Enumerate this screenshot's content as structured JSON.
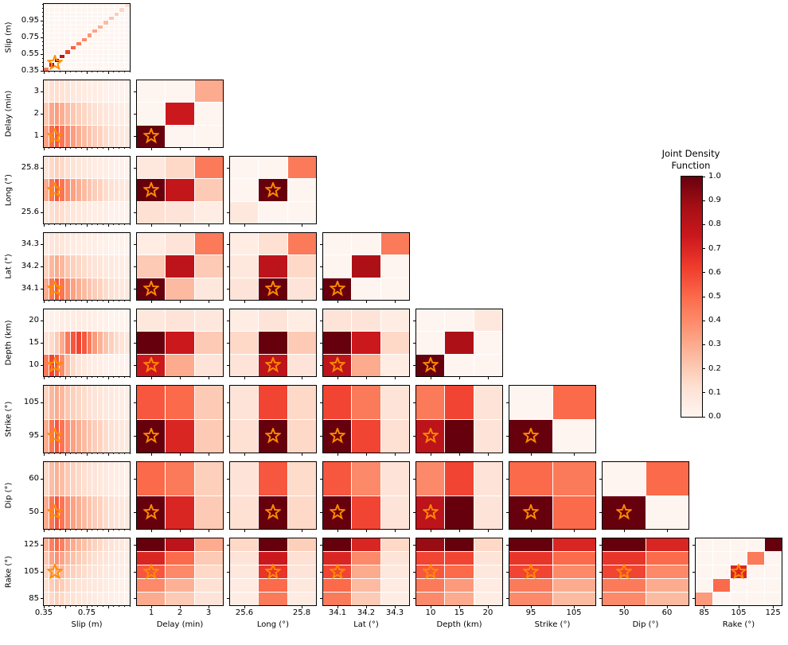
{
  "chart_data": {
    "type": "heatmap",
    "title": "Joint Density Function",
    "background": "#ffffff",
    "star_color": "#ff8c00",
    "colorbar": {
      "title_lines": [
        "Joint Density",
        "Function"
      ],
      "tick_labels": [
        "0.0",
        "0.1",
        "0.2",
        "0.3",
        "0.4",
        "0.5",
        "0.6",
        "0.7",
        "0.8",
        "0.9",
        "1.0"
      ],
      "vmin": 0.0,
      "vmax": 1.0
    },
    "colormap": {
      "name": "Reds",
      "anchors": [
        {
          "pos": 0.0,
          "rgb": [
            255,
            245,
            240
          ]
        },
        {
          "pos": 0.125,
          "rgb": [
            254,
            224,
            210
          ]
        },
        {
          "pos": 0.25,
          "rgb": [
            252,
            187,
            161
          ]
        },
        {
          "pos": 0.375,
          "rgb": [
            252,
            146,
            114
          ]
        },
        {
          "pos": 0.5,
          "rgb": [
            251,
            106,
            74
          ]
        },
        {
          "pos": 0.625,
          "rgb": [
            239,
            59,
            44
          ]
        },
        {
          "pos": 0.75,
          "rgb": [
            203,
            24,
            29
          ]
        },
        {
          "pos": 0.875,
          "rgb": [
            165,
            15,
            21
          ]
        },
        {
          "pos": 1.0,
          "rgb": [
            103,
            0,
            13
          ]
        }
      ]
    },
    "variables": [
      {
        "key": "slip",
        "label": "Slip (m)",
        "min": 0.35,
        "max": 1.15,
        "star": 0.45,
        "minor_step": 0.05,
        "ticks": [
          {
            "v": 0.35,
            "t": "0.35"
          },
          {
            "v": 0.55,
            "t": "0.55"
          },
          {
            "v": 0.75,
            "t": "0.75"
          },
          {
            "v": 0.95,
            "t": "0.95"
          }
        ],
        "xticks": [
          {
            "v": 0.35,
            "t": "0.35"
          },
          {
            "v": 0.75,
            "t": "0.75"
          }
        ]
      },
      {
        "key": "delay",
        "label": "Delay (min)",
        "min": 0.5,
        "max": 3.5,
        "star": 1,
        "ticks": [
          {
            "v": 1,
            "t": "1"
          },
          {
            "v": 2,
            "t": "2"
          },
          {
            "v": 3,
            "t": "3"
          }
        ]
      },
      {
        "key": "long",
        "label": "Long (°)",
        "min": 25.55,
        "max": 25.85,
        "star": 25.7,
        "ticks": [
          {
            "v": 25.6,
            "t": "25.6"
          },
          {
            "v": 25.8,
            "t": "25.8"
          }
        ]
      },
      {
        "key": "lat",
        "label": "Lat (°)",
        "min": 34.05,
        "max": 34.35,
        "star": 34.1,
        "ticks": [
          {
            "v": 34.1,
            "t": "34.1"
          },
          {
            "v": 34.2,
            "t": "34.2"
          },
          {
            "v": 34.3,
            "t": "34.3"
          }
        ]
      },
      {
        "key": "depth",
        "label": "Depth (km)",
        "min": 7.5,
        "max": 22.5,
        "star": 10,
        "ticks": [
          {
            "v": 10,
            "t": "10"
          },
          {
            "v": 15,
            "t": "15"
          },
          {
            "v": 20,
            "t": "20"
          }
        ]
      },
      {
        "key": "strike",
        "label": "Strike (°)",
        "min": 90,
        "max": 110,
        "star": 95,
        "ticks": [
          {
            "v": 95,
            "t": "95"
          },
          {
            "v": 105,
            "t": "105"
          }
        ]
      },
      {
        "key": "dip",
        "label": "Dip (°)",
        "min": 45,
        "max": 65,
        "star": 50,
        "ticks": [
          {
            "v": 50,
            "t": "50"
          },
          {
            "v": 60,
            "t": "60"
          }
        ]
      },
      {
        "key": "rake",
        "label": "Rake (°)",
        "min": 80,
        "max": 130,
        "star": 105,
        "ticks": [
          {
            "v": 85,
            "t": "85"
          },
          {
            "v": 105,
            "t": "105"
          },
          {
            "v": 125,
            "t": "125"
          }
        ]
      }
    ],
    "panels": [
      {
        "xi": 0,
        "yi": 0,
        "diag": [
          0.45,
          0.85,
          1.0,
          0.8,
          0.62,
          0.52,
          0.45,
          0.4,
          0.36,
          0.32,
          0.28,
          0.25,
          0.22,
          0.19,
          0.16,
          0.13
        ]
      },
      {
        "xi": 0,
        "yi": 1,
        "matrix": [
          [
            0.33,
            0.5,
            0.55,
            0.47,
            0.4,
            0.34,
            0.29,
            0.25,
            0.22,
            0.19,
            0.17,
            0.14,
            0.12,
            0.1,
            0.08,
            0.07
          ],
          [
            0.2,
            0.31,
            0.34,
            0.29,
            0.25,
            0.21,
            0.18,
            0.16,
            0.14,
            0.12,
            0.1,
            0.09,
            0.08,
            0.06,
            0.05,
            0.04
          ],
          [
            0.08,
            0.12,
            0.13,
            0.11,
            0.1,
            0.08,
            0.07,
            0.06,
            0.05,
            0.05,
            0.04,
            0.03,
            0.03,
            0.02,
            0.02,
            0.02
          ]
        ]
      },
      {
        "xi": 1,
        "yi": 1,
        "diag": [
          1.0,
          0.75,
          0.3
        ]
      },
      {
        "xi": 0,
        "yi": 2,
        "matrix": [
          [
            0.08,
            0.13,
            0.15,
            0.13,
            0.11,
            0.09,
            0.08,
            0.07,
            0.06,
            0.05,
            0.05,
            0.04,
            0.03,
            0.03,
            0.02,
            0.02
          ],
          [
            0.3,
            0.47,
            0.55,
            0.47,
            0.39,
            0.33,
            0.29,
            0.25,
            0.22,
            0.19,
            0.17,
            0.14,
            0.12,
            0.1,
            0.08,
            0.07
          ],
          [
            0.1,
            0.15,
            0.18,
            0.15,
            0.13,
            0.11,
            0.09,
            0.08,
            0.07,
            0.06,
            0.05,
            0.05,
            0.04,
            0.03,
            0.03,
            0.02
          ]
        ]
      },
      {
        "xi": 1,
        "yi": 2,
        "matrix": [
          [
            0.12,
            0.1,
            0.05
          ],
          [
            1.0,
            0.78,
            0.2
          ],
          [
            0.08,
            0.15,
            0.45
          ]
        ]
      },
      {
        "xi": 2,
        "yi": 2,
        "diag": [
          0.08,
          1.0,
          0.45
        ]
      },
      {
        "xi": 0,
        "yi": 3,
        "matrix": [
          [
            0.3,
            0.47,
            0.55,
            0.47,
            0.39,
            0.33,
            0.29,
            0.25,
            0.22,
            0.19,
            0.17,
            0.14,
            0.12,
            0.1,
            0.08,
            0.07
          ],
          [
            0.17,
            0.26,
            0.3,
            0.26,
            0.21,
            0.18,
            0.16,
            0.14,
            0.12,
            0.1,
            0.09,
            0.08,
            0.07,
            0.06,
            0.05,
            0.04
          ],
          [
            0.06,
            0.09,
            0.1,
            0.09,
            0.07,
            0.06,
            0.05,
            0.05,
            0.04,
            0.04,
            0.03,
            0.03,
            0.02,
            0.02,
            0.02,
            0.01
          ]
        ]
      },
      {
        "xi": 1,
        "yi": 3,
        "matrix": [
          [
            1.0,
            0.25,
            0.08
          ],
          [
            0.2,
            0.8,
            0.2
          ],
          [
            0.05,
            0.1,
            0.45
          ]
        ]
      },
      {
        "xi": 2,
        "yi": 3,
        "matrix": [
          [
            0.1,
            1.0,
            0.1
          ],
          [
            0.08,
            0.8,
            0.15
          ],
          [
            0.05,
            0.12,
            0.45
          ]
        ]
      },
      {
        "xi": 3,
        "yi": 3,
        "diag": [
          1.0,
          0.85,
          0.45
        ]
      },
      {
        "xi": 0,
        "yi": 4,
        "matrix": [
          [
            0.45,
            0.6,
            0.55,
            0.4,
            0.25,
            0.15,
            0.1,
            0.08,
            0.06,
            0.05,
            0.04,
            0.03,
            0.03,
            0.02,
            0.02,
            0.01
          ],
          [
            0.1,
            0.14,
            0.2,
            0.3,
            0.45,
            0.55,
            0.6,
            0.55,
            0.45,
            0.35,
            0.28,
            0.22,
            0.18,
            0.14,
            0.11,
            0.08
          ],
          [
            0.02,
            0.03,
            0.03,
            0.04,
            0.05,
            0.06,
            0.06,
            0.05,
            0.05,
            0.04,
            0.03,
            0.03,
            0.02,
            0.02,
            0.01,
            0.01
          ]
        ]
      },
      {
        "xi": 1,
        "yi": 4,
        "matrix": [
          [
            0.75,
            0.3,
            0.1
          ],
          [
            1.0,
            0.75,
            0.2
          ],
          [
            0.08,
            0.1,
            0.08
          ]
        ]
      },
      {
        "xi": 2,
        "yi": 4,
        "matrix": [
          [
            0.1,
            0.8,
            0.1
          ],
          [
            0.15,
            1.0,
            0.2
          ],
          [
            0.05,
            0.1,
            0.05
          ]
        ]
      },
      {
        "xi": 3,
        "yi": 4,
        "matrix": [
          [
            0.8,
            0.3,
            0.05
          ],
          [
            1.0,
            0.75,
            0.15
          ],
          [
            0.1,
            0.1,
            0.05
          ]
        ]
      },
      {
        "xi": 4,
        "yi": 4,
        "diag": [
          1.0,
          0.85,
          0.08
        ]
      },
      {
        "xi": 0,
        "yi": 5,
        "matrix": [
          [
            0.3,
            0.47,
            0.55,
            0.47,
            0.39,
            0.33,
            0.29,
            0.25,
            0.22,
            0.19,
            0.17,
            0.14,
            0.12,
            0.1,
            0.08,
            0.07
          ],
          [
            0.17,
            0.26,
            0.3,
            0.26,
            0.21,
            0.18,
            0.16,
            0.14,
            0.12,
            0.1,
            0.09,
            0.08,
            0.07,
            0.06,
            0.05,
            0.04
          ]
        ]
      },
      {
        "xi": 1,
        "yi": 5,
        "matrix": [
          [
            1.0,
            0.7,
            0.2
          ],
          [
            0.55,
            0.5,
            0.2
          ]
        ]
      },
      {
        "xi": 2,
        "yi": 5,
        "matrix": [
          [
            0.12,
            1.0,
            0.15
          ],
          [
            0.1,
            0.6,
            0.15
          ]
        ]
      },
      {
        "xi": 3,
        "yi": 5,
        "matrix": [
          [
            1.0,
            0.6,
            0.12
          ],
          [
            0.6,
            0.45,
            0.1
          ]
        ]
      },
      {
        "xi": 4,
        "yi": 5,
        "matrix": [
          [
            0.8,
            1.0,
            0.1
          ],
          [
            0.45,
            0.6,
            0.1
          ]
        ]
      },
      {
        "xi": 5,
        "yi": 5,
        "diag": [
          1.0,
          0.5
        ]
      },
      {
        "xi": 0,
        "yi": 6,
        "matrix": [
          [
            0.3,
            0.47,
            0.55,
            0.47,
            0.39,
            0.33,
            0.29,
            0.25,
            0.22,
            0.19,
            0.17,
            0.14,
            0.12,
            0.1,
            0.08,
            0.07
          ],
          [
            0.15,
            0.24,
            0.28,
            0.24,
            0.2,
            0.17,
            0.15,
            0.13,
            0.11,
            0.1,
            0.08,
            0.07,
            0.06,
            0.05,
            0.04,
            0.03
          ]
        ]
      },
      {
        "xi": 1,
        "yi": 6,
        "matrix": [
          [
            1.0,
            0.7,
            0.2
          ],
          [
            0.5,
            0.45,
            0.18
          ]
        ]
      },
      {
        "xi": 2,
        "yi": 6,
        "matrix": [
          [
            0.12,
            1.0,
            0.15
          ],
          [
            0.1,
            0.55,
            0.14
          ]
        ]
      },
      {
        "xi": 3,
        "yi": 6,
        "matrix": [
          [
            1.0,
            0.6,
            0.1
          ],
          [
            0.55,
            0.4,
            0.1
          ]
        ]
      },
      {
        "xi": 4,
        "yi": 6,
        "matrix": [
          [
            0.8,
            1.0,
            0.1
          ],
          [
            0.4,
            0.6,
            0.1
          ]
        ]
      },
      {
        "xi": 5,
        "yi": 6,
        "matrix": [
          [
            1.0,
            0.5
          ],
          [
            0.5,
            0.45
          ]
        ]
      },
      {
        "xi": 6,
        "yi": 6,
        "diag": [
          1.0,
          0.5
        ]
      },
      {
        "xi": 0,
        "yi": 7,
        "matrix": [
          [
            0.1,
            0.15,
            0.18,
            0.15,
            0.13,
            0.11,
            0.09,
            0.08,
            0.07,
            0.06,
            0.05,
            0.05,
            0.04,
            0.03,
            0.03,
            0.02
          ],
          [
            0.12,
            0.19,
            0.22,
            0.19,
            0.16,
            0.13,
            0.11,
            0.1,
            0.09,
            0.08,
            0.07,
            0.06,
            0.05,
            0.04,
            0.03,
            0.03
          ],
          [
            0.17,
            0.26,
            0.3,
            0.26,
            0.21,
            0.18,
            0.16,
            0.14,
            0.12,
            0.1,
            0.09,
            0.08,
            0.07,
            0.06,
            0.05,
            0.04
          ],
          [
            0.21,
            0.32,
            0.38,
            0.32,
            0.27,
            0.23,
            0.2,
            0.17,
            0.15,
            0.13,
            0.11,
            0.1,
            0.08,
            0.07,
            0.06,
            0.05
          ],
          [
            0.28,
            0.43,
            0.5,
            0.43,
            0.35,
            0.3,
            0.26,
            0.23,
            0.2,
            0.17,
            0.15,
            0.13,
            0.11,
            0.09,
            0.08,
            0.06
          ]
        ]
      },
      {
        "xi": 1,
        "yi": 7,
        "matrix": [
          [
            0.3,
            0.2,
            0.1
          ],
          [
            0.4,
            0.28,
            0.12
          ],
          [
            0.55,
            0.4,
            0.15
          ],
          [
            0.7,
            0.5,
            0.2
          ],
          [
            1.0,
            0.8,
            0.3
          ]
        ]
      },
      {
        "xi": 2,
        "yi": 7,
        "matrix": [
          [
            0.05,
            0.45,
            0.06
          ],
          [
            0.06,
            0.5,
            0.08
          ],
          [
            0.08,
            0.65,
            0.1
          ],
          [
            0.1,
            0.75,
            0.12
          ],
          [
            0.15,
            1.0,
            0.18
          ]
        ]
      },
      {
        "xi": 3,
        "yi": 7,
        "matrix": [
          [
            0.45,
            0.2,
            0.05
          ],
          [
            0.5,
            0.25,
            0.06
          ],
          [
            0.6,
            0.3,
            0.08
          ],
          [
            0.7,
            0.4,
            0.1
          ],
          [
            1.0,
            0.7,
            0.15
          ]
        ]
      },
      {
        "xi": 4,
        "yi": 7,
        "matrix": [
          [
            0.4,
            0.3,
            0.05
          ],
          [
            0.45,
            0.35,
            0.06
          ],
          [
            0.55,
            0.5,
            0.08
          ],
          [
            0.6,
            0.6,
            0.1
          ],
          [
            0.9,
            1.0,
            0.15
          ]
        ]
      },
      {
        "xi": 5,
        "yi": 7,
        "matrix": [
          [
            0.4,
            0.25
          ],
          [
            0.45,
            0.3
          ],
          [
            0.6,
            0.4
          ],
          [
            0.65,
            0.5
          ],
          [
            1.0,
            0.7
          ]
        ]
      },
      {
        "xi": 6,
        "yi": 7,
        "matrix": [
          [
            0.4,
            0.25
          ],
          [
            0.45,
            0.3
          ],
          [
            0.6,
            0.4
          ],
          [
            0.65,
            0.5
          ],
          [
            1.0,
            0.7
          ]
        ]
      },
      {
        "xi": 7,
        "yi": 7,
        "diag": [
          0.35,
          0.5,
          0.7,
          0.45,
          1.0
        ]
      }
    ]
  }
}
